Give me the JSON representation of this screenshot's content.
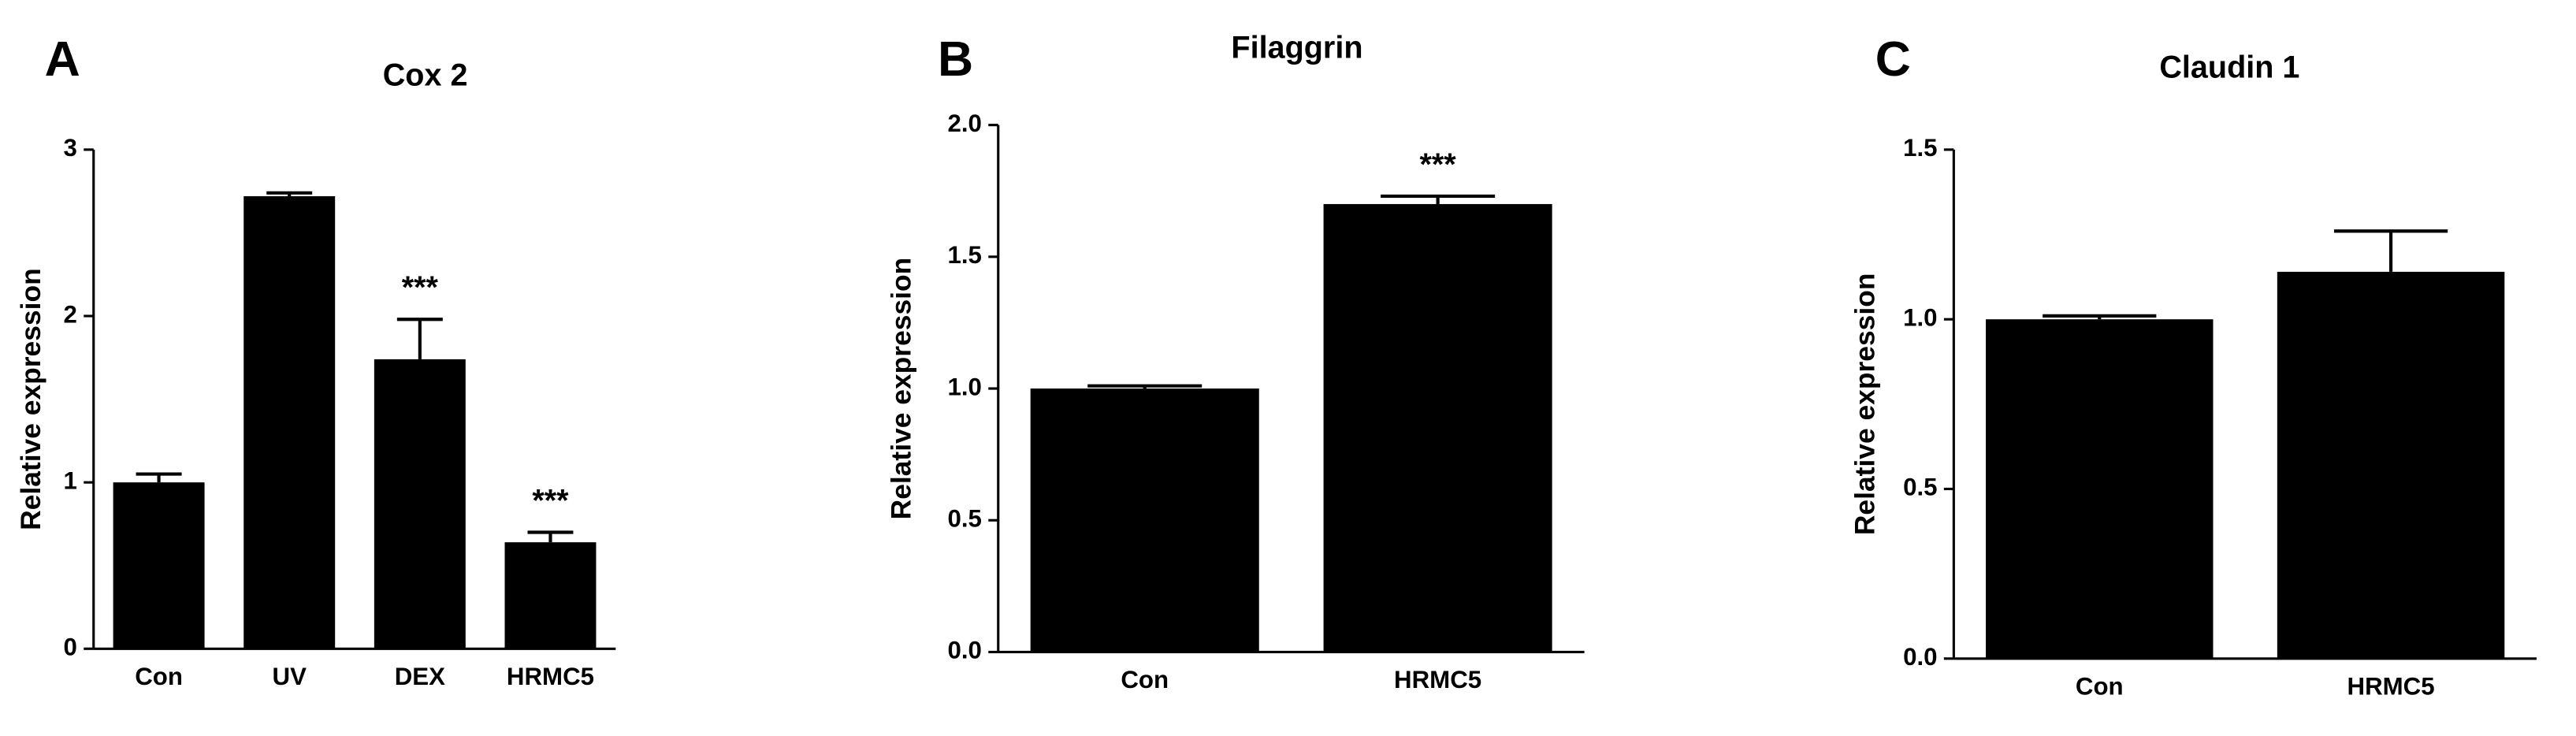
{
  "chart_data": [
    {
      "type": "bar",
      "panel": "A",
      "title": "Cox 2",
      "y_label": "Relative expression",
      "categories": [
        "Con",
        "UV",
        "DEX",
        "HRMC5"
      ],
      "values": [
        1.0,
        2.72,
        1.74,
        0.64
      ],
      "errors": [
        0.05,
        0.02,
        0.24,
        0.06
      ],
      "annotations": [
        null,
        null,
        "***",
        "***"
      ],
      "color": "#000000",
      "ylim": [
        0,
        3
      ],
      "yticks": [
        0,
        1,
        2,
        3
      ]
    },
    {
      "type": "bar",
      "panel": "B",
      "title": "Filaggrin",
      "y_label": "Relative expression",
      "categories": [
        "Con",
        "HRMC5"
      ],
      "values": [
        1.0,
        1.7
      ],
      "errors": [
        0.01,
        0.03
      ],
      "annotations": [
        null,
        "***"
      ],
      "color": "#000000",
      "ylim": [
        0,
        2
      ],
      "yticks": [
        {
          "value": 0,
          "label": "0.0"
        },
        0.5,
        {
          "value": 1,
          "label": "1.0"
        },
        1.5,
        {
          "value": 2,
          "label": "2.0"
        }
      ]
    },
    {
      "type": "bar",
      "panel": "C",
      "title": "Claudin 1",
      "y_label": "Relative expression",
      "categories": [
        "Con",
        "HRMC5"
      ],
      "values": [
        1.0,
        1.14
      ],
      "errors": [
        0.01,
        0.12
      ],
      "annotations": [
        null,
        null
      ],
      "color": "#000000",
      "ylim": [
        0,
        1.5
      ],
      "yticks": [
        {
          "value": 0,
          "label": "0.0"
        },
        0.5,
        {
          "value": 1,
          "label": "1.0"
        },
        1.5
      ]
    }
  ]
}
